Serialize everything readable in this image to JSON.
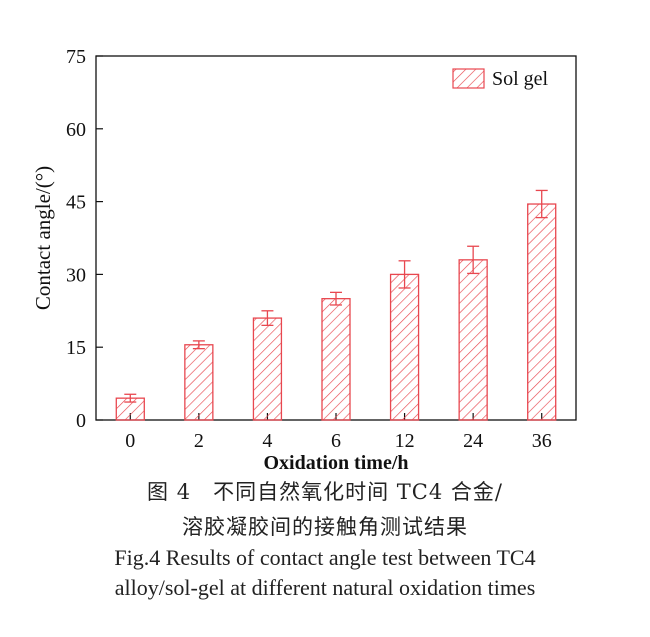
{
  "chart_data": {
    "type": "bar",
    "categories": [
      "0",
      "2",
      "4",
      "6",
      "12",
      "24",
      "36"
    ],
    "series": [
      {
        "name": "Sol gel",
        "values": [
          4.5,
          15.5,
          21,
          25,
          30,
          33,
          44.5
        ],
        "errors": [
          0.8,
          0.8,
          1.5,
          1.3,
          2.8,
          2.8,
          2.8
        ]
      }
    ],
    "xlabel": "Oxidation time/h",
    "ylabel": "Contact angle/(°)",
    "ylim": [
      0,
      75
    ],
    "yticks": [
      0,
      15,
      30,
      45,
      60,
      75
    ],
    "legend_position": "top-right",
    "bar_pattern": "hatched",
    "colors": {
      "bar_stroke": "#e8474f",
      "axis": "#111111"
    }
  },
  "caption": {
    "cn_line1": "图 4　不同自然氧化时间 TC4 合金/",
    "cn_line2": "溶胶凝胶间的接触角测试结果",
    "en_line1": "Fig.4 Results of contact angle test between TC4",
    "en_line2": "alloy/sol-gel at different natural oxidation times"
  }
}
